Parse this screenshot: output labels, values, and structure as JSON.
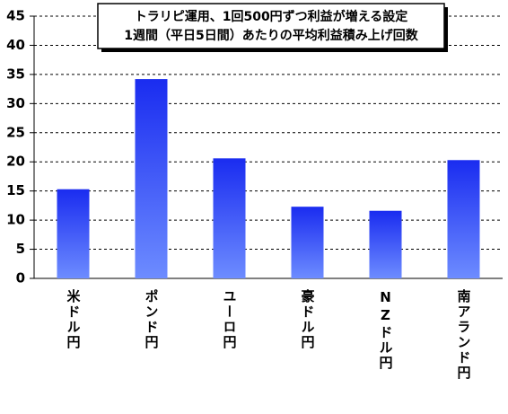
{
  "chart_data": {
    "type": "bar",
    "title": "トラリピ運用、1回500円ずつ利益が増える設定",
    "subtitle": "1週間（平日5日間）あたりの平均利益積み上げ回数",
    "categories": [
      "米ドル円",
      "ポンド円",
      "ユーロ円",
      "豪ドル円",
      "NZドル円",
      "南アランド円"
    ],
    "values": [
      15.3,
      34.2,
      20.6,
      12.3,
      11.6,
      20.3
    ],
    "color": "#2b3cf5",
    "ylim": [
      0,
      45
    ],
    "yticks": [
      0,
      5,
      10,
      15,
      20,
      25,
      30,
      35,
      40,
      45
    ],
    "grid": true
  }
}
